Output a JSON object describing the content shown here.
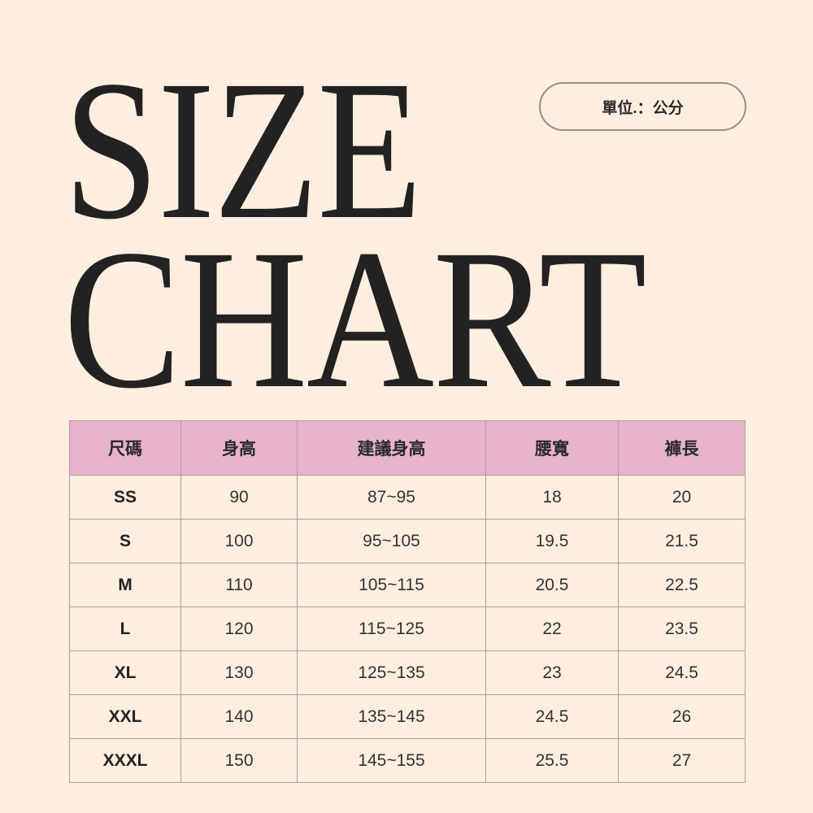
{
  "title": {
    "line1": "SIZE",
    "line2": "CHART"
  },
  "unit_label": "單位.：公分",
  "table": {
    "headers": [
      "尺碼",
      "身高",
      "建議身高",
      "腰寬",
      "褲長"
    ],
    "rows": [
      [
        "SS",
        "90",
        "87~95",
        "18",
        "20"
      ],
      [
        "S",
        "100",
        "95~105",
        "19.5",
        "21.5"
      ],
      [
        "M",
        "110",
        "105~115",
        "20.5",
        "22.5"
      ],
      [
        "L",
        "120",
        "115~125",
        "22",
        "23.5"
      ],
      [
        "XL",
        "130",
        "125~135",
        "23",
        "24.5"
      ],
      [
        "XXL",
        "140",
        "135~145",
        "24.5",
        "26"
      ],
      [
        "XXXL",
        "150",
        "145~155",
        "25.5",
        "27"
      ]
    ]
  },
  "colors": {
    "background": "#fdeee0",
    "header": "#e6b3cb",
    "text": "#222222"
  }
}
